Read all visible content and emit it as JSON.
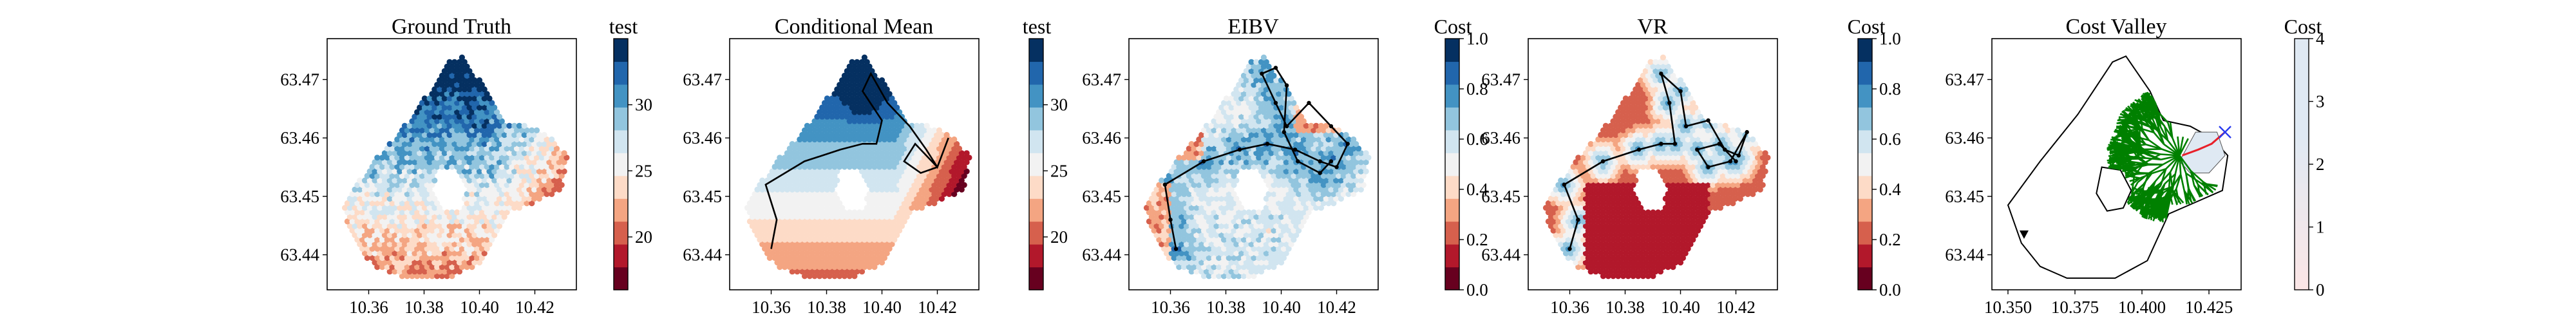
{
  "chart_data": [
    {
      "type": "heatmap",
      "title": "Ground Truth",
      "colorbar_label": "test",
      "cmap": "RdBu",
      "clim": [
        16,
        35
      ],
      "colorbar_ticks": [
        20,
        25,
        30
      ],
      "xticks": [
        "10.36",
        "10.38",
        "10.40",
        "10.42"
      ],
      "yticks": [
        "63.44",
        "63.45",
        "63.46",
        "63.47"
      ],
      "xlim": [
        10.345,
        10.435
      ],
      "ylim": [
        63.434,
        63.477
      ],
      "path": []
    },
    {
      "type": "heatmap",
      "title": "Conditional Mean",
      "colorbar_label": "test",
      "cmap": "RdBu",
      "clim": [
        16,
        35
      ],
      "colorbar_ticks": [
        20,
        25,
        30
      ],
      "xticks": [
        "10.36",
        "10.38",
        "10.40",
        "10.42"
      ],
      "yticks": [
        "63.44",
        "63.45",
        "63.46",
        "63.47"
      ],
      "xlim": [
        10.345,
        10.435
      ],
      "ylim": [
        63.434,
        63.477
      ],
      "path": [
        [
          10.36,
          63.441
        ],
        [
          10.362,
          63.446
        ],
        [
          10.358,
          63.452
        ],
        [
          10.372,
          63.456
        ],
        [
          10.385,
          63.458
        ],
        [
          10.393,
          63.459
        ],
        [
          10.398,
          63.459
        ],
        [
          10.4,
          63.463
        ],
        [
          10.393,
          63.468
        ],
        [
          10.396,
          63.471
        ],
        [
          10.402,
          63.466
        ],
        [
          10.41,
          63.462
        ],
        [
          10.416,
          63.458
        ],
        [
          10.42,
          63.455
        ],
        [
          10.424,
          63.46
        ],
        [
          10.42,
          63.455
        ],
        [
          10.412,
          63.459
        ],
        [
          10.408,
          63.456
        ],
        [
          10.414,
          63.454
        ],
        [
          10.42,
          63.455
        ]
      ]
    },
    {
      "type": "heatmap",
      "title": "EIBV",
      "colorbar_label": "Cost",
      "cmap": "RdBu",
      "clim": [
        0,
        1
      ],
      "colorbar_ticks": [
        "0.0",
        "0.2",
        "0.4",
        "0.6",
        "0.8",
        "1.0"
      ],
      "xticks": [
        "10.36",
        "10.38",
        "10.40",
        "10.42"
      ],
      "yticks": [
        "63.44",
        "63.45",
        "63.46",
        "63.47"
      ],
      "xlim": [
        10.345,
        10.435
      ],
      "ylim": [
        63.434,
        63.477
      ],
      "path": [
        [
          10.362,
          63.441
        ],
        [
          10.36,
          63.446
        ],
        [
          10.358,
          63.452
        ],
        [
          10.372,
          63.456
        ],
        [
          10.385,
          63.458
        ],
        [
          10.395,
          63.459
        ],
        [
          10.405,
          63.458
        ],
        [
          10.414,
          63.456
        ],
        [
          10.42,
          63.455
        ],
        [
          10.424,
          63.459
        ],
        [
          10.418,
          63.462
        ],
        [
          10.41,
          63.466
        ],
        [
          10.402,
          63.462
        ],
        [
          10.398,
          63.466
        ],
        [
          10.393,
          63.471
        ],
        [
          10.398,
          63.472
        ],
        [
          10.402,
          63.469
        ],
        [
          10.401,
          63.461
        ],
        [
          10.406,
          63.456
        ],
        [
          10.414,
          63.454
        ],
        [
          10.418,
          63.456
        ]
      ]
    },
    {
      "type": "heatmap",
      "title": "VR",
      "colorbar_label": "Cost",
      "cmap": "RdBu",
      "clim": [
        0,
        1
      ],
      "colorbar_ticks": [
        "0.0",
        "0.2",
        "0.4",
        "0.6",
        "0.8",
        "1.0"
      ],
      "xticks": [
        "10.36",
        "10.38",
        "10.40",
        "10.42"
      ],
      "yticks": [
        "63.44",
        "63.45",
        "63.46",
        "63.47"
      ],
      "xlim": [
        10.345,
        10.435
      ],
      "ylim": [
        63.434,
        63.477
      ],
      "path": [
        [
          10.36,
          63.441
        ],
        [
          10.363,
          63.446
        ],
        [
          10.358,
          63.452
        ],
        [
          10.372,
          63.456
        ],
        [
          10.385,
          63.458
        ],
        [
          10.393,
          63.459
        ],
        [
          10.398,
          63.459
        ],
        [
          10.396,
          63.466
        ],
        [
          10.393,
          63.471
        ],
        [
          10.4,
          63.468
        ],
        [
          10.402,
          63.462
        ],
        [
          10.41,
          63.463
        ],
        [
          10.416,
          63.458
        ],
        [
          10.421,
          63.457
        ],
        [
          10.424,
          63.461
        ],
        [
          10.418,
          63.456
        ],
        [
          10.41,
          63.455
        ],
        [
          10.406,
          63.458
        ],
        [
          10.414,
          63.459
        ],
        [
          10.42,
          63.456
        ]
      ]
    },
    {
      "type": "heatmap",
      "title": "Cost Valley",
      "colorbar_label": "Cost",
      "cmap": "Blues",
      "clim": [
        0,
        4
      ],
      "colorbar_ticks": [
        "0",
        "1",
        "2",
        "3",
        "4"
      ],
      "xticks": [
        "10.350",
        "10.375",
        "10.400",
        "10.425"
      ],
      "yticks": [
        "63.44",
        "63.45",
        "63.46",
        "63.47"
      ],
      "xlim": [
        10.344,
        10.437
      ],
      "ylim": [
        63.434,
        63.477
      ],
      "path": [
        [
          10.415,
          63.457
        ],
        [
          10.421,
          63.458
        ],
        [
          10.426,
          63.459
        ],
        [
          10.431,
          63.461
        ]
      ]
    }
  ],
  "colors": {
    "path": "#000000",
    "tree": "#008000",
    "chosen_path": "#e8202a",
    "target_marker": "#2a3cf0",
    "valley_fill": "#dfe9f3"
  }
}
